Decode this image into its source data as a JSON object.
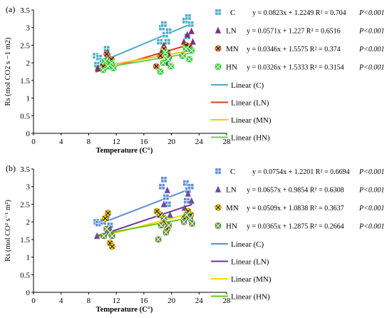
{
  "chart_data": [
    {
      "panel_label": "(a)",
      "type": "scatter",
      "xlabel": "Temperature (C°)",
      "ylabel": "Rs (mol CO2 s −1 m2)",
      "xlim": [
        0,
        28
      ],
      "ylim": [
        0,
        3.5
      ],
      "xticks": [
        "0",
        "4",
        "8",
        "12",
        "16",
        "20",
        "24",
        "28"
      ],
      "yticks": [
        "0",
        "0.5",
        "1",
        "1.5",
        "2",
        "2.5",
        "3",
        "3.5"
      ],
      "grid": false,
      "legend_position": "right",
      "series": [
        {
          "name": "C",
          "marker": "square",
          "color": "#4bacc6",
          "equation": "y = 0.0823x + 1.2249 R² = 0.704",
          "p": "P<0.001",
          "fit": {
            "slope": 0.0823,
            "intercept": 1.2249,
            "x_range": [
              9,
              23
            ]
          },
          "points": [
            [
              9,
              2.2
            ],
            [
              9.2,
              1.95
            ],
            [
              9.5,
              2.15
            ],
            [
              10,
              2.0
            ],
            [
              10.3,
              2.05
            ],
            [
              10.6,
              2.4
            ],
            [
              10.8,
              2.2
            ],
            [
              11.2,
              1.95
            ],
            [
              18.3,
              2.6
            ],
            [
              18.6,
              3.0
            ],
            [
              18.9,
              3.1
            ],
            [
              19.1,
              2.8
            ],
            [
              19.4,
              2.6
            ],
            [
              19.6,
              2.9
            ],
            [
              22,
              3.2
            ],
            [
              22.4,
              3.3
            ],
            [
              22.8,
              3.1
            ],
            [
              22.3,
              2.75
            ]
          ]
        },
        {
          "name": "LN",
          "marker": "triangle",
          "color": "#7f2f7f",
          "equation": "y = 0.0571x + 1.227 R² = 0.6516",
          "p": "P<0.001",
          "fit": {
            "slope": 0.0571,
            "intercept": 1.227,
            "x_range": [
              9,
              23
            ]
          },
          "points": [
            [
              9.3,
              1.85
            ],
            [
              10.2,
              1.9
            ],
            [
              10.7,
              2.3
            ],
            [
              11.1,
              2.0
            ],
            [
              18.5,
              2.3
            ],
            [
              18.9,
              2.5
            ],
            [
              19.3,
              2.0
            ],
            [
              19.7,
              2.2
            ],
            [
              21.8,
              2.6
            ],
            [
              22.3,
              2.8
            ],
            [
              22.9,
              2.9
            ],
            [
              23.1,
              2.6
            ]
          ]
        },
        {
          "name": "MN",
          "marker": "x-circle",
          "color": "#f79646",
          "equation": "y = 0.0346x + 1.5575 R² = 0.374",
          "p": "P<0.001",
          "fit": {
            "slope": 0.0346,
            "intercept": 1.5575,
            "x_range": [
              9,
              23
            ]
          },
          "points": [
            [
              10.1,
              1.9
            ],
            [
              10.6,
              2.25
            ],
            [
              10.9,
              2.0
            ],
            [
              11.3,
              2.1
            ],
            [
              17.8,
              1.9
            ],
            [
              18.4,
              2.2
            ],
            [
              18.9,
              2.4
            ],
            [
              19.4,
              2.3
            ],
            [
              21.6,
              2.2
            ],
            [
              22.1,
              2.5
            ],
            [
              22.6,
              2.45
            ]
          ]
        },
        {
          "name": "HN",
          "marker": "x-square",
          "color": "#33cc33",
          "equation": "y = 0.0326x + 1.5333 R² = 0.3154",
          "p": "P<0.001",
          "fit": {
            "slope": 0.0326,
            "intercept": 1.5333,
            "x_range": [
              9,
              23
            ]
          },
          "points": [
            [
              10.1,
              1.8
            ],
            [
              10.4,
              2.05
            ],
            [
              10.8,
              1.9
            ],
            [
              11.3,
              2.0
            ],
            [
              11.6,
              1.85
            ],
            [
              18.4,
              1.75
            ],
            [
              18.8,
              2.0
            ],
            [
              19.1,
              2.3
            ],
            [
              19.5,
              2.1
            ],
            [
              19.9,
              1.9
            ],
            [
              21.6,
              2.2
            ],
            [
              22.1,
              2.4
            ],
            [
              22.6,
              2.1
            ],
            [
              22.9,
              2.35
            ]
          ]
        }
      ],
      "fit_legend": [
        {
          "label": "Linear (C)",
          "color": "#4bacc6"
        },
        {
          "label": "Linear (LN)",
          "color": "#e03b1e"
        },
        {
          "label": "Linear (MN)",
          "color": "#ffbe2a"
        },
        {
          "label": "Linear (HN)",
          "color": "#5fd64a"
        }
      ]
    },
    {
      "panel_label": "(b)",
      "type": "scatter",
      "xlabel": "Temperature (C°)",
      "ylabel": "Rs (mol CO² s⁻¹ m²)",
      "xlim": [
        0,
        28
      ],
      "ylim": [
        0,
        3.5
      ],
      "xticks": [
        "0",
        "4",
        "8",
        "12",
        "16",
        "20",
        "24",
        "28"
      ],
      "yticks": [
        "0",
        "0.5",
        "1",
        "1.5",
        "2",
        "2.5",
        "3",
        "3.5"
      ],
      "grid": false,
      "legend_position": "right",
      "series": [
        {
          "name": "C",
          "marker": "square",
          "color": "#5b8ed6",
          "equation": "y = 0.0754x + 1.2201 R² = 0.6694",
          "p": "P<0.001",
          "fit": {
            "slope": 0.0754,
            "intercept": 1.2201,
            "x_range": [
              9,
              23
            ]
          },
          "points": [
            [
              9.1,
              2.0
            ],
            [
              9.4,
              1.95
            ],
            [
              10.1,
              2.0
            ],
            [
              10.6,
              2.1
            ],
            [
              11.1,
              1.9
            ],
            [
              18.2,
              2.2
            ],
            [
              18.6,
              3.0
            ],
            [
              18.9,
              3.2
            ],
            [
              19.2,
              2.7
            ],
            [
              19.5,
              2.5
            ],
            [
              22.1,
              3.1
            ],
            [
              22.4,
              2.9
            ],
            [
              22.8,
              3.0
            ],
            [
              22.2,
              2.6
            ]
          ]
        },
        {
          "name": "LN",
          "marker": "triangle",
          "color": "#6e4a9e",
          "equation": "y = 0.0657x + 0.9854 R² = 0.6308",
          "p": "P<0.001",
          "fit": {
            "slope": 0.0657,
            "intercept": 0.9854,
            "x_range": [
              9,
              23
            ]
          },
          "points": [
            [
              9.2,
              1.6
            ],
            [
              10.6,
              1.7
            ],
            [
              11.1,
              1.8
            ],
            [
              18.4,
              2.2
            ],
            [
              18.9,
              2.5
            ],
            [
              19.4,
              2.9
            ],
            [
              19.8,
              2.2
            ],
            [
              21.9,
              2.4
            ],
            [
              22.4,
              2.8
            ],
            [
              22.9,
              2.6
            ]
          ]
        },
        {
          "name": "MN",
          "marker": "x-circle",
          "color": "#ffd700",
          "equation": "y = 0.0509x + 1.0838 R² = 0.3637",
          "p": "P<0.001",
          "fit": {
            "slope": 0.0509,
            "intercept": 1.0838,
            "x_range": [
              9,
              23
            ]
          },
          "points": [
            [
              10.4,
              2.1
            ],
            [
              10.8,
              2.25
            ],
            [
              11.1,
              1.4
            ],
            [
              11.4,
              1.3
            ],
            [
              17.9,
              2.3
            ],
            [
              18.4,
              2.2
            ],
            [
              18.9,
              2.0
            ],
            [
              19.4,
              1.8
            ],
            [
              21.9,
              2.1
            ],
            [
              22.4,
              2.3
            ],
            [
              22.8,
              2.2
            ]
          ]
        },
        {
          "name": "HN",
          "marker": "x-square",
          "color": "#5a8f3a",
          "equation": "y = 0.0365x + 1.2875 R² = 0.2664",
          "p": "P<0.001",
          "fit": {
            "slope": 0.0365,
            "intercept": 1.2875,
            "x_range": [
              9,
              23
            ]
          },
          "points": [
            [
              10.2,
              1.6
            ],
            [
              10.6,
              1.8
            ],
            [
              11.1,
              1.7
            ],
            [
              11.4,
              1.6
            ],
            [
              18.1,
              1.5
            ],
            [
              18.5,
              1.9
            ],
            [
              18.9,
              2.1
            ],
            [
              19.2,
              1.7
            ],
            [
              19.6,
              1.9
            ],
            [
              21.8,
              2.0
            ],
            [
              22.2,
              2.2
            ],
            [
              22.7,
              2.1
            ],
            [
              23.0,
              1.95
            ]
          ]
        }
      ],
      "fit_legend": [
        {
          "label": "Linear (C)",
          "color": "#5b8ed6"
        },
        {
          "label": "Linear (LN)",
          "color": "#7030a0"
        },
        {
          "label": "Linear (MN)",
          "color": "#ffd700"
        },
        {
          "label": "Linear (HN)",
          "color": "#66cc00"
        }
      ]
    }
  ]
}
